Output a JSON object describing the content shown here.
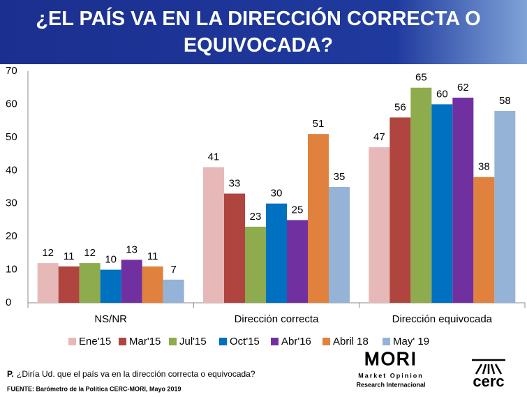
{
  "chart_data": {
    "type": "bar",
    "title": "¿EL PAÍS VA EN LA DIRECCIÓN CORRECTA O EQUIVOCADA?",
    "categories": [
      "NS/NR",
      "Dirección correcta",
      "Dirección equivocada"
    ],
    "series": [
      {
        "name": "Ene'15",
        "color": "#e6b9b8",
        "values": [
          12,
          41,
          47
        ]
      },
      {
        "name": "Mar'15",
        "color": "#b0443f",
        "values": [
          11,
          33,
          56
        ]
      },
      {
        "name": "Jul'15",
        "color": "#8eab4e",
        "values": [
          12,
          23,
          65
        ]
      },
      {
        "name": "Oct'15",
        "color": "#0070c0",
        "values": [
          10,
          30,
          60
        ]
      },
      {
        "name": "Abr'16",
        "color": "#7030a0",
        "values": [
          13,
          25,
          62
        ]
      },
      {
        "name": "Abril 18",
        "color": "#e0823d",
        "values": [
          11,
          51,
          38
        ]
      },
      {
        "name": "May' 19",
        "color": "#95b3d7",
        "values": [
          7,
          35,
          58
        ]
      }
    ],
    "ylim": [
      0,
      70
    ],
    "yticks": [
      0,
      10,
      20,
      30,
      40,
      50,
      60,
      70
    ],
    "grid": false,
    "legend": "bottom"
  },
  "footer": {
    "question_label": "P.",
    "question": "¿Diría Ud. que el país va en la dirección correcta o equivocada?",
    "source": "FUENTE: Barómetro de la Política CERC-MORI, Mayo 2019",
    "logo_mori": "MORI",
    "logo_mori_sub1": "Market Opinion",
    "logo_mori_sub2": "Research Internacional",
    "logo_cerc": "cerc"
  }
}
